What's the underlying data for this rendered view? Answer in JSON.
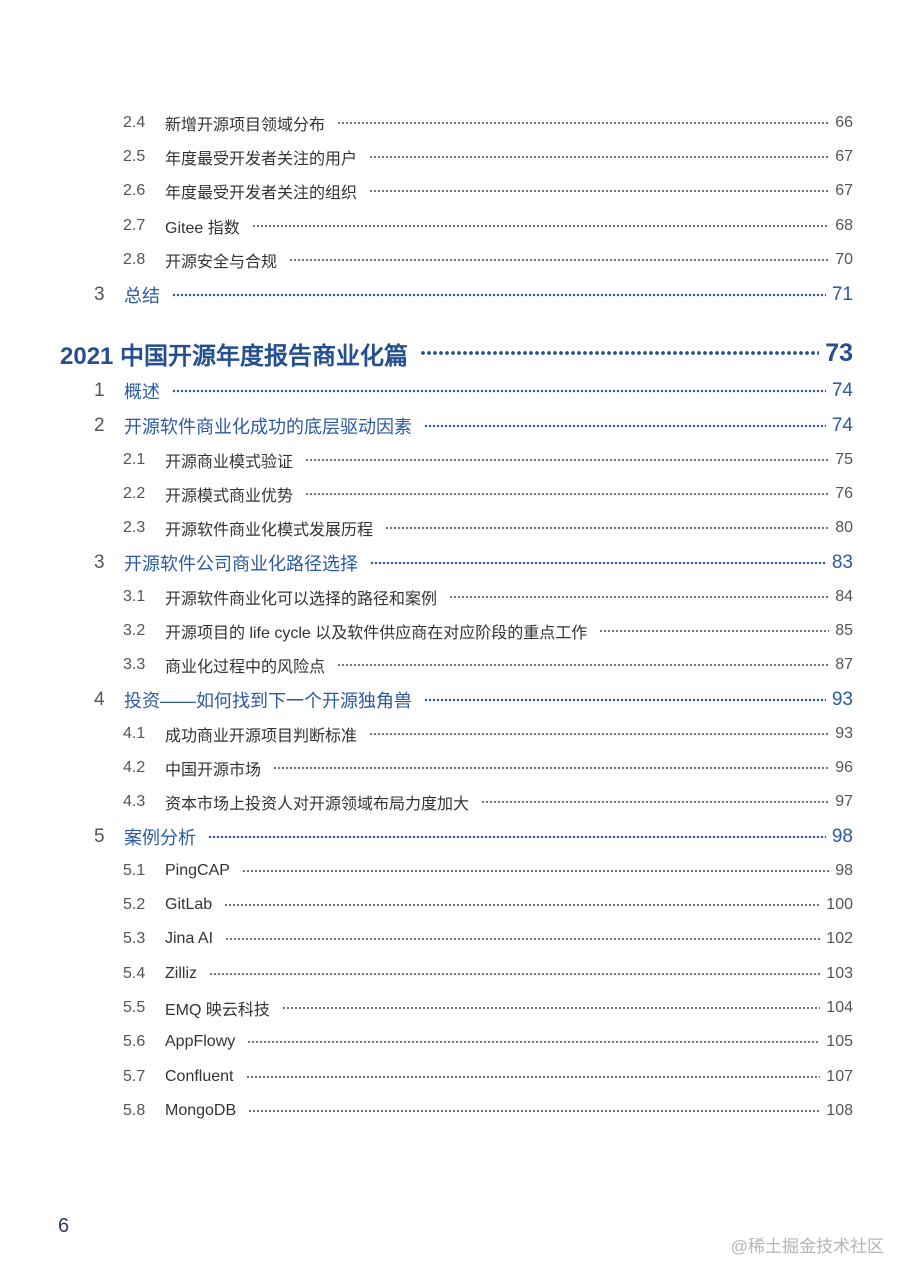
{
  "toc": [
    {
      "level": "sub",
      "num": "2.4",
      "title": "新增开源项目领域分布",
      "page": "66"
    },
    {
      "level": "sub",
      "num": "2.5",
      "title": "年度最受开发者关注的用户",
      "page": "67"
    },
    {
      "level": "sub",
      "num": "2.6",
      "title": "年度最受开发者关注的组织",
      "page": "67"
    },
    {
      "level": "sub",
      "num": "2.7",
      "title": "Gitee 指数",
      "page": "68"
    },
    {
      "level": "sub",
      "num": "2.8",
      "title": "开源安全与合规",
      "page": "70"
    },
    {
      "level": "l1",
      "num": "3",
      "title": "总结",
      "page": "71"
    },
    {
      "level": "hd",
      "num": "",
      "title": "2021 中国开源年度报告商业化篇",
      "page": "73"
    },
    {
      "level": "l1",
      "num": "1",
      "title": "概述",
      "page": "74"
    },
    {
      "level": "l1",
      "num": "2",
      "title": "开源软件商业化成功的底层驱动因素",
      "page": "74"
    },
    {
      "level": "sub",
      "num": "2.1",
      "title": "开源商业模式验证",
      "page": "75"
    },
    {
      "level": "sub",
      "num": "2.2",
      "title": "开源模式商业优势",
      "page": "76"
    },
    {
      "level": "sub",
      "num": "2.3",
      "title": "开源软件商业化模式发展历程",
      "page": "80"
    },
    {
      "level": "l1",
      "num": "3",
      "title": "开源软件公司商业化路径选择",
      "page": "83"
    },
    {
      "level": "sub",
      "num": "3.1",
      "title": "开源软件商业化可以选择的路径和案例",
      "page": "84"
    },
    {
      "level": "sub",
      "num": "3.2",
      "title": "开源项目的 life cycle 以及软件供应商在对应阶段的重点工作",
      "page": "85"
    },
    {
      "level": "sub",
      "num": "3.3",
      "title": "商业化过程中的风险点",
      "page": "87"
    },
    {
      "level": "l1",
      "num": "4",
      "title": "投资——如何找到下一个开源独角兽",
      "page": "93"
    },
    {
      "level": "sub",
      "num": "4.1",
      "title": "成功商业开源项目判断标准",
      "page": "93"
    },
    {
      "level": "sub",
      "num": "4.2",
      "title": "中国开源市场",
      "page": "96"
    },
    {
      "level": "sub",
      "num": "4.3",
      "title": "资本市场上投资人对开源领域布局力度加大",
      "page": "97"
    },
    {
      "level": "l1",
      "num": "5",
      "title": "案例分析",
      "page": "98"
    },
    {
      "level": "sub",
      "num": "5.1",
      "title": "PingCAP",
      "page": "98"
    },
    {
      "level": "sub",
      "num": "5.2",
      "title": "GitLab",
      "page": "100"
    },
    {
      "level": "sub",
      "num": "5.3",
      "title": "Jina AI",
      "page": "102"
    },
    {
      "level": "sub",
      "num": "5.4",
      "title": "Zilliz",
      "page": "103"
    },
    {
      "level": "sub",
      "num": "5.5",
      "title": "EMQ 映云科技",
      "page": "104"
    },
    {
      "level": "sub",
      "num": "5.6",
      "title": "AppFlowy",
      "page": "105"
    },
    {
      "level": "sub",
      "num": "5.7",
      "title": "Confluent",
      "page": "107"
    },
    {
      "level": "sub",
      "num": "5.8",
      "title": "MongoDB",
      "page": "108"
    }
  ],
  "footer": {
    "page_number": "6",
    "watermark": "@稀土掘金技术社区"
  }
}
